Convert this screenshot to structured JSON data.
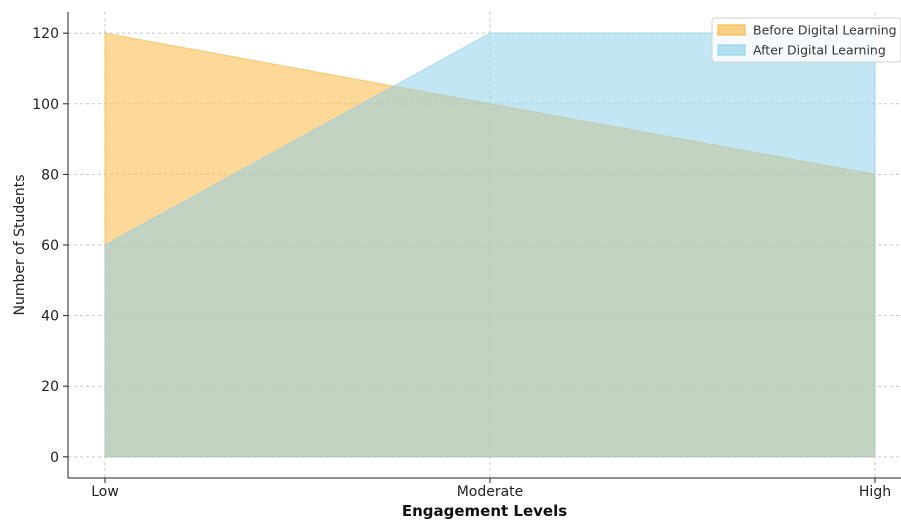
{
  "chart_data": {
    "type": "area",
    "categories": [
      "Low",
      "Moderate",
      "High"
    ],
    "series": [
      {
        "name": "Before Digital Learning",
        "values": [
          120,
          100,
          80
        ],
        "color": "#f9b233"
      },
      {
        "name": "After Digital Learning",
        "values": [
          60,
          120,
          120
        ],
        "color": "#87ceeb"
      }
    ],
    "xlabel": "Engagement Levels",
    "ylabel": "Number of Students",
    "ylim": [
      -6,
      126
    ],
    "yticks": [
      0,
      20,
      40,
      60,
      80,
      100,
      120
    ],
    "grid": true,
    "legend_position": "top-right"
  }
}
